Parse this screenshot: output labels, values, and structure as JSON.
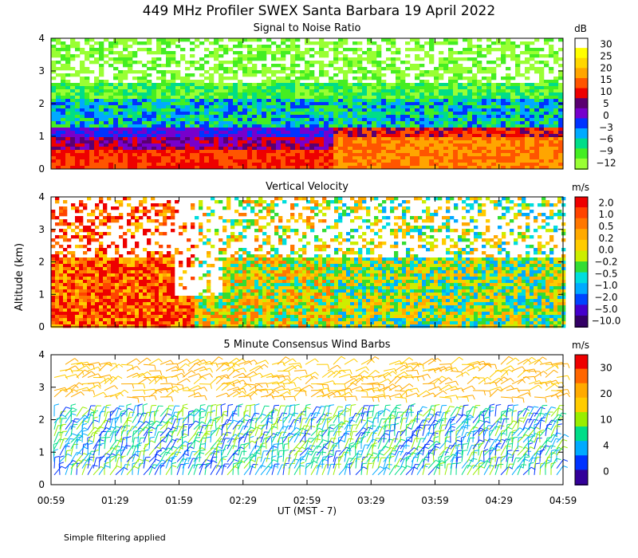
{
  "header": {
    "title": "449 MHz Profiler SWEX Santa Barbara 19 April 2022"
  },
  "axes": {
    "ylabel": "Altitude (km)",
    "xlabel": "UT  (MST - 7)"
  },
  "footnote": "Simple filtering applied",
  "chart_data": [
    {
      "type": "heatmap",
      "title": "Signal to Noise Ratio",
      "unit": "dB",
      "x_ticks": [
        "00:59",
        "01:29",
        "01:59",
        "02:29",
        "02:59",
        "03:29",
        "03:59",
        "04:29",
        "04:59"
      ],
      "y_ticks": [
        "0",
        "1",
        "2",
        "3",
        "4"
      ],
      "ylim": [
        0,
        4
      ],
      "colorbar": {
        "labels": [
          "30",
          "25",
          "20",
          "15",
          "10",
          "5",
          "0",
          "−3",
          "−6",
          "−9",
          "−12"
        ],
        "colors": [
          "#ffffff",
          "#ffff00",
          "#ffd700",
          "#ffa500",
          "#ff5500",
          "#ee0000",
          "#5a0070",
          "#7700cc",
          "#0033ff",
          "#00aaff",
          "#00dd88",
          "#44ee22",
          "#99ff33"
        ]
      }
    },
    {
      "type": "heatmap",
      "title": "Vertical Velocity",
      "unit": "m/s",
      "x_ticks": [
        "00:59",
        "01:29",
        "01:59",
        "02:29",
        "02:59",
        "03:29",
        "03:59",
        "04:29",
        "04:59"
      ],
      "y_ticks": [
        "0",
        "1",
        "2",
        "3",
        "4"
      ],
      "ylim": [
        0,
        4
      ],
      "colorbar": {
        "labels": [
          "2.0",
          "1.0",
          "0.5",
          "0.2",
          "0.0",
          "−0.2",
          "−0.5",
          "−1.0",
          "−2.0",
          "−5.0",
          "−10.0"
        ],
        "colors": [
          "#ee0000",
          "#ff4400",
          "#ff7700",
          "#ffaa00",
          "#ffcc00",
          "#ccee00",
          "#33dd33",
          "#00dddd",
          "#00aaff",
          "#0044ff",
          "#4400cc",
          "#330066"
        ]
      }
    },
    {
      "type": "wind_barbs",
      "title": "5 Minute Consensus Wind Barbs",
      "unit": "m/s",
      "x_ticks": [
        "00:59",
        "01:29",
        "01:59",
        "02:29",
        "02:59",
        "03:29",
        "03:59",
        "04:29",
        "04:59"
      ],
      "y_ticks": [
        "0",
        "1",
        "2",
        "3",
        "4"
      ],
      "ylim": [
        0,
        4
      ],
      "colorbar": {
        "labels": [
          "30",
          "20",
          "10",
          "4",
          "0"
        ],
        "colors": [
          "#ee0000",
          "#ff6600",
          "#ffaa00",
          "#ffcc00",
          "#99ee00",
          "#00dd88",
          "#00aaff",
          "#0033ff",
          "#330099"
        ]
      }
    }
  ]
}
